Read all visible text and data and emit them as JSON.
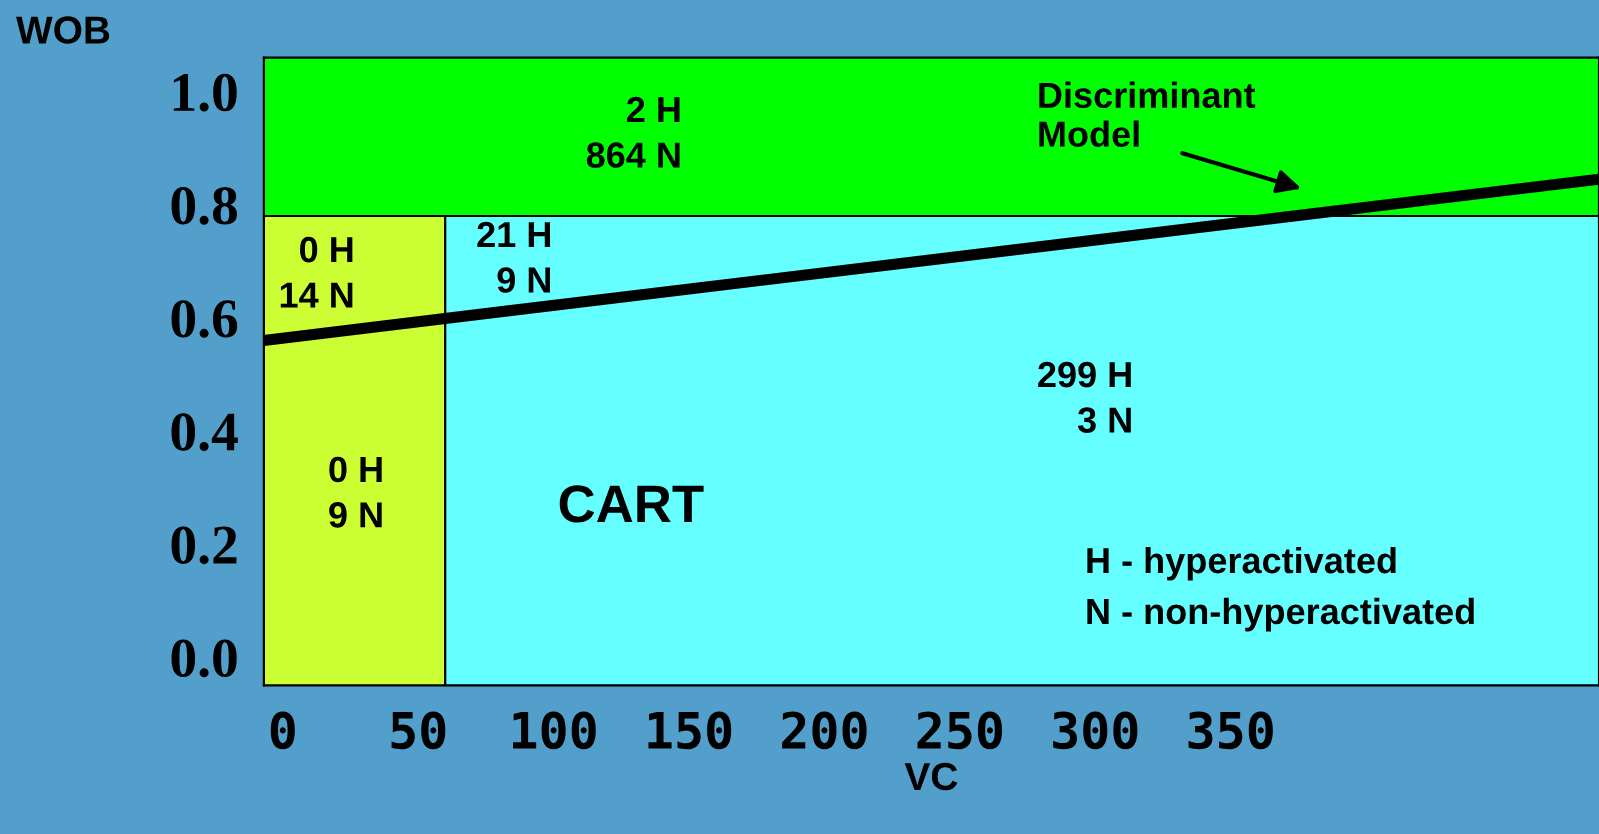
{
  "chart_data": {
    "type": "line",
    "xlabel": "VC",
    "ylabel": "WOB",
    "xlim": [
      -7,
      486
    ],
    "ylim": [
      -0.05,
      1.06
    ],
    "xticks": [
      0,
      50,
      100,
      150,
      200,
      250,
      300,
      350
    ],
    "yticks": [
      {
        "value": 0,
        "label": "0.0"
      },
      {
        "value": 0.2,
        "label": "0.2"
      },
      {
        "value": 0.4,
        "label": "0.4"
      },
      {
        "value": 0.6,
        "label": "0.6"
      },
      {
        "value": 0.8,
        "label": "0.8"
      },
      {
        "value": 1.0,
        "label": "1.0"
      }
    ],
    "series": [
      {
        "name": "Discriminant Model",
        "color": "#000000",
        "x": [
          -7,
          486
        ],
        "values": [
          0.56,
          0.845
        ]
      }
    ],
    "bands": [
      {
        "axis": "x",
        "from": -7,
        "to": 60,
        "color": "#ccff33"
      },
      {
        "axis": "x",
        "from": 60,
        "to": 486,
        "color": "#66ffff"
      },
      {
        "axis": "y",
        "from": 0.78,
        "to": 1.06,
        "color": "#00ff00"
      }
    ],
    "annotations": [
      "2 H\n864 N",
      "0 H\n14 N",
      "21 H\n9 N",
      "299 H\n3 N",
      "0 H\n9 N",
      "CART",
      "H - hyperactivated",
      "N - non-hyperactivated"
    ],
    "grid": false,
    "legend": false
  }
}
